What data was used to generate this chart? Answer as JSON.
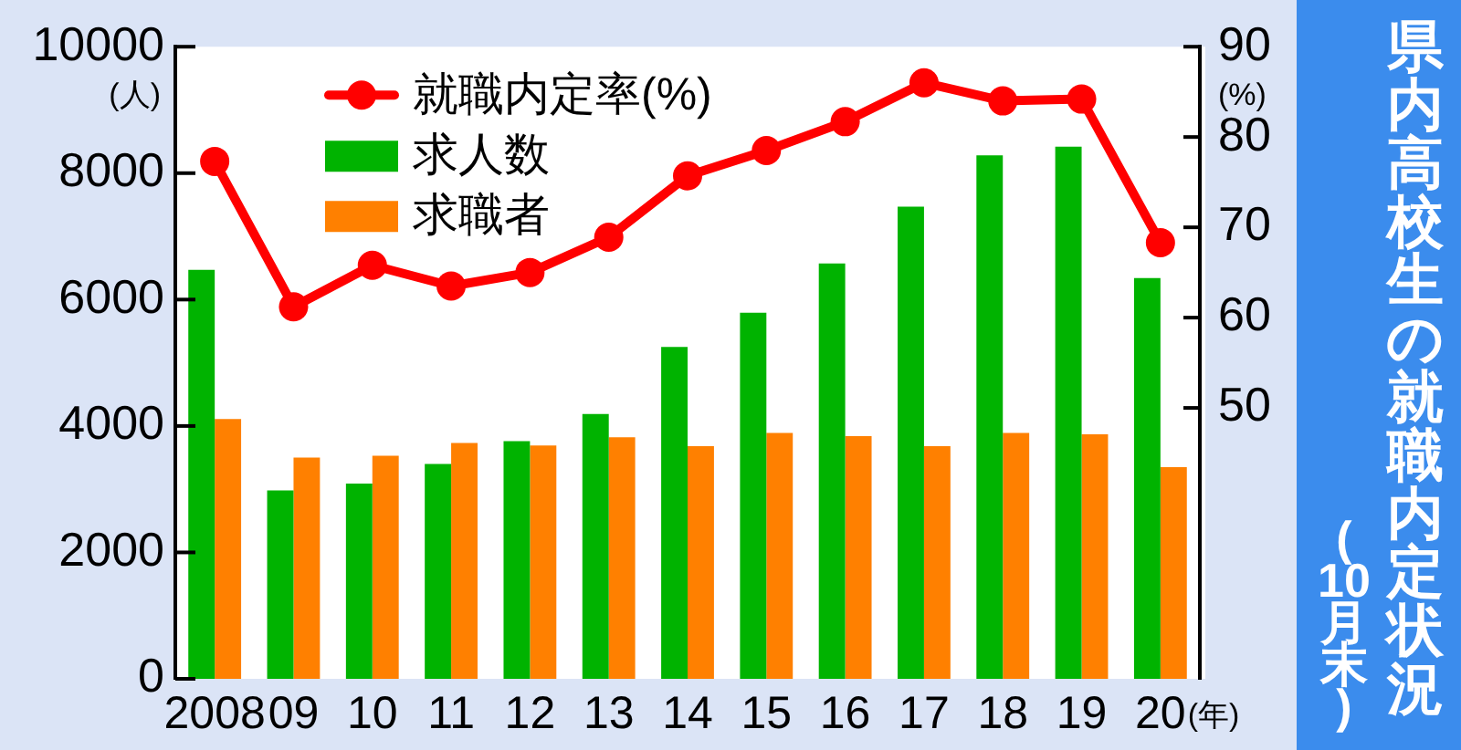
{
  "chart_data": {
    "type": "bar",
    "title": "県内高校生の就職内定状況",
    "subtitle": "(10月末)",
    "xlabel": "(年)",
    "ylabel": "(人)",
    "y2label": "(%)",
    "categories": [
      "2008",
      "09",
      "10",
      "11",
      "12",
      "13",
      "14",
      "15",
      "16",
      "17",
      "18",
      "19",
      "20"
    ],
    "series": [
      {
        "name": "就職内定率(%)",
        "type": "line",
        "axis": "y2",
        "color": "#ff0000",
        "values": [
          77.3,
          61.2,
          65.8,
          63.5,
          65.0,
          68.9,
          75.7,
          78.5,
          81.7,
          86.0,
          84.0,
          84.2,
          68.3
        ]
      },
      {
        "name": "求人数",
        "color": "#00b300",
        "values": [
          6470,
          2980,
          3090,
          3400,
          3760,
          4190,
          5250,
          5790,
          6570,
          7470,
          8280,
          8420,
          6340
        ]
      },
      {
        "name": "求職者",
        "color": "#ff8000",
        "values": [
          4110,
          3500,
          3530,
          3730,
          3690,
          3820,
          3680,
          3890,
          3840,
          3680,
          3890,
          3870,
          3350
        ]
      }
    ],
    "ylim": [
      0,
      10000
    ],
    "yticks": [
      0,
      2000,
      4000,
      6000,
      8000,
      10000
    ],
    "y2lim": [
      20,
      90
    ],
    "y2ticks": [
      50,
      60,
      70,
      80,
      90
    ],
    "legend": "top left",
    "marker": "circle"
  }
}
